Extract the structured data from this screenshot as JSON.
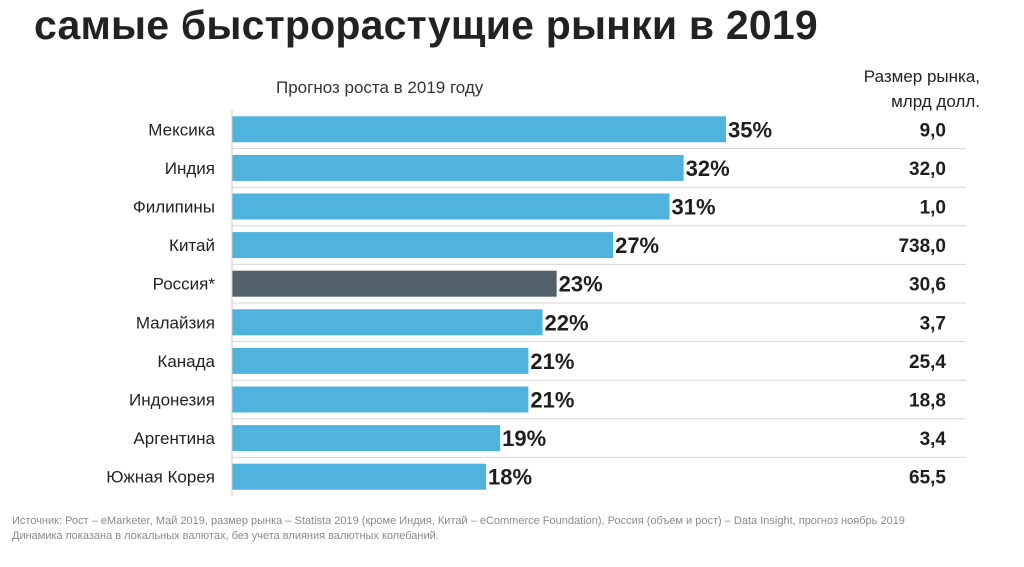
{
  "chart_data": {
    "type": "bar",
    "orientation": "horizontal",
    "title": "самые быстрорастущие рынки в 2019",
    "subtitle": "Прогноз роста в 2019 году",
    "value_unit": "%",
    "categories": [
      "Мексика",
      "Индия",
      "Филипины",
      "Китай",
      "Россия*",
      "Малайзия",
      "Канада",
      "Индонезия",
      "Аргентина",
      "Южная Корея"
    ],
    "values": [
      35,
      32,
      31,
      27,
      23,
      22,
      21,
      21,
      19,
      18
    ],
    "value_labels": [
      "35%",
      "32%",
      "31%",
      "27%",
      "23%",
      "22%",
      "21%",
      "21%",
      "19%",
      "18%"
    ],
    "highlight_index": 4,
    "secondary_header": [
      "Размер рынка,",
      "млрд долл."
    ],
    "secondary_values": [
      "9,0",
      "32,0",
      "1,0",
      "738,0",
      "30,6",
      "3,7",
      "25,4",
      "18,8",
      "3,4",
      "65,5"
    ],
    "xlim": [
      0,
      35
    ]
  },
  "colors": {
    "bar": "#4fb3dd",
    "highlight_bar": "#53616b",
    "separator": "#d6d6d6",
    "axis": "#c8c8c8"
  },
  "footer": {
    "source": "Источник: Рост – eMarketer, Май 2019, размер рынка – Statista 2019 (кроме Индия, Китай – eCommerce Foundation), Россия (объем и рост) – Data Insight, прогноз ноябрь 2019",
    "note": "Динамика показана в локальных валютах, без учета влияния валютных колебаний."
  }
}
